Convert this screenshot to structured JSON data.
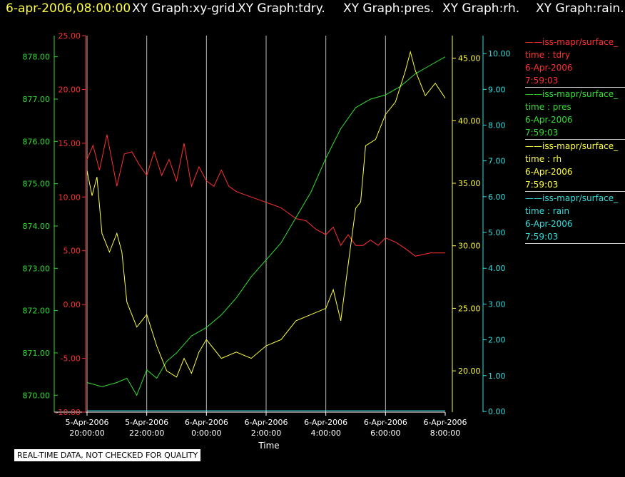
{
  "header": {
    "timestamp": "6-apr-2006,08:00:00",
    "titles": [
      "XY Graph:xy-grid.",
      "XY Graph:tdry.",
      "XY Graph:pres.",
      "XY Graph:rh.",
      "XY Graph:rain."
    ]
  },
  "notice": "REAL-TIME DATA, NOT CHECKED FOR QUALITY",
  "legend": [
    {
      "name": "iss-mapr/surface_",
      "var": "time : tdry",
      "date": "6-Apr-2006",
      "time": "7:59:03",
      "color": "#ff3030"
    },
    {
      "name": "iss-mapr/surface_",
      "var": "time : pres",
      "date": "6-Apr-2006",
      "time": "7:59:03",
      "color": "#33dd33"
    },
    {
      "name": "iss-mapr/surface_",
      "var": "time : rh",
      "date": "6-Apr-2006",
      "time": "7:59:03",
      "color": "#ffff40"
    },
    {
      "name": "iss-mapr/surface_",
      "var": "time : rain",
      "date": "6-Apr-2006",
      "time": "7:59:03",
      "color": "#33dddd"
    }
  ],
  "chart_data": {
    "type": "line",
    "xlabel": "Time",
    "x_ticks": [
      {
        "date": "5-Apr-2006",
        "time": "20:00:00"
      },
      {
        "date": "5-Apr-2006",
        "time": "22:00:00"
      },
      {
        "date": "6-Apr-2006",
        "time": "0:00:00"
      },
      {
        "date": "6-Apr-2006",
        "time": "2:00:00"
      },
      {
        "date": "6-Apr-2006",
        "time": "4:00:00"
      },
      {
        "date": "6-Apr-2006",
        "time": "6:00:00"
      },
      {
        "date": "6-Apr-2006",
        "time": "8:00:00"
      }
    ],
    "xlim": [
      "2006-04-05T20:00",
      "2006-04-06T08:00"
    ],
    "grid": true,
    "axes": {
      "tdry": {
        "range": [
          -10,
          25
        ],
        "ticks": [
          "-10.00",
          "-5.00",
          "0.00",
          "5.00",
          "10.00",
          "15.00",
          "20.00",
          "25.00"
        ],
        "color": "#ff3030"
      },
      "pres": {
        "range": [
          869.6,
          878.5
        ],
        "ticks": [
          "870.00",
          "871.00",
          "872.00",
          "873.00",
          "874.00",
          "875.00",
          "876.00",
          "877.00",
          "878.00"
        ],
        "color": "#33dd33"
      },
      "rh": {
        "range": [
          16.7,
          46.8
        ],
        "ticks": [
          "20.00",
          "25.00",
          "30.00",
          "35.00",
          "40.00",
          "45.00"
        ],
        "color": "#ffff40"
      },
      "rain": {
        "range": [
          -0.02,
          10.5
        ],
        "ticks": [
          "0.00",
          "1.00",
          "2.00",
          "3.00",
          "4.00",
          "5.00",
          "6.00",
          "7.00",
          "8.00",
          "9.00",
          "10.00"
        ],
        "color": "#33dddd"
      }
    },
    "series": [
      {
        "axis": "tdry",
        "color": "#ff3030",
        "x": [
          "2006-04-05T20:00",
          "2006-04-05T20:12",
          "2006-04-05T20:25",
          "2006-04-05T20:40",
          "2006-04-05T21:00",
          "2006-04-05T21:15",
          "2006-04-05T21:30",
          "2006-04-05T21:45",
          "2006-04-05T22:00",
          "2006-04-05T22:15",
          "2006-04-05T22:30",
          "2006-04-05T22:45",
          "2006-04-05T23:00",
          "2006-04-05T23:15",
          "2006-04-05T23:30",
          "2006-04-05T23:45",
          "2006-04-06T00:00",
          "2006-04-06T00:15",
          "2006-04-06T00:30",
          "2006-04-06T00:45",
          "2006-04-06T01:00",
          "2006-04-06T01:30",
          "2006-04-06T02:00",
          "2006-04-06T02:30",
          "2006-04-06T03:00",
          "2006-04-06T03:20",
          "2006-04-06T03:40",
          "2006-04-06T04:00",
          "2006-04-06T04:15",
          "2006-04-06T04:30",
          "2006-04-06T04:45",
          "2006-04-06T05:00",
          "2006-04-06T05:15",
          "2006-04-06T05:30",
          "2006-04-06T05:45",
          "2006-04-06T06:00",
          "2006-04-06T06:20",
          "2006-04-06T06:40",
          "2006-04-06T07:00",
          "2006-04-06T07:30",
          "2006-04-06T08:00"
        ],
        "y": [
          13.5,
          14.8,
          12.5,
          15.8,
          11.0,
          14.0,
          14.2,
          13.0,
          12.0,
          14.2,
          12.0,
          13.5,
          11.5,
          15.0,
          11.0,
          12.8,
          11.5,
          11.0,
          12.5,
          11.0,
          10.5,
          10.0,
          9.5,
          9.0,
          8.0,
          7.8,
          7.0,
          6.5,
          7.2,
          5.5,
          6.5,
          5.5,
          5.5,
          6.0,
          5.5,
          6.2,
          5.8,
          5.2,
          4.5,
          4.8,
          4.8
        ]
      },
      {
        "axis": "pres",
        "color": "#33dd33",
        "x": [
          "2006-04-05T20:00",
          "2006-04-05T20:30",
          "2006-04-05T21:00",
          "2006-04-05T21:20",
          "2006-04-05T21:40",
          "2006-04-05T22:00",
          "2006-04-05T22:20",
          "2006-04-05T22:40",
          "2006-04-05T23:00",
          "2006-04-05T23:30",
          "2006-04-06T00:00",
          "2006-04-06T00:30",
          "2006-04-06T01:00",
          "2006-04-06T01:30",
          "2006-04-06T02:00",
          "2006-04-06T02:30",
          "2006-04-06T03:00",
          "2006-04-06T03:30",
          "2006-04-06T04:00",
          "2006-04-06T04:30",
          "2006-04-06T05:00",
          "2006-04-06T05:30",
          "2006-04-06T06:00",
          "2006-04-06T06:30",
          "2006-04-06T07:00",
          "2006-04-06T07:30",
          "2006-04-06T08:00"
        ],
        "y": [
          870.3,
          870.2,
          870.3,
          870.4,
          870.0,
          870.6,
          870.4,
          870.8,
          871.0,
          871.4,
          871.6,
          871.9,
          872.3,
          872.8,
          873.2,
          873.6,
          874.2,
          874.8,
          875.6,
          876.3,
          876.8,
          877.0,
          877.1,
          877.3,
          877.6,
          877.8,
          878.0
        ]
      },
      {
        "axis": "rh",
        "color": "#ffff40",
        "x": [
          "2006-04-05T20:00",
          "2006-04-05T20:10",
          "2006-04-05T20:20",
          "2006-04-05T20:30",
          "2006-04-05T20:45",
          "2006-04-05T21:00",
          "2006-04-05T21:10",
          "2006-04-05T21:20",
          "2006-04-05T21:40",
          "2006-04-05T22:00",
          "2006-04-05T22:20",
          "2006-04-05T22:40",
          "2006-04-05T23:00",
          "2006-04-05T23:15",
          "2006-04-05T23:30",
          "2006-04-05T23:45",
          "2006-04-06T00:00",
          "2006-04-06T00:30",
          "2006-04-06T01:00",
          "2006-04-06T01:30",
          "2006-04-06T02:00",
          "2006-04-06T02:30",
          "2006-04-06T03:00",
          "2006-04-06T03:30",
          "2006-04-06T04:00",
          "2006-04-06T04:15",
          "2006-04-06T04:30",
          "2006-04-06T04:45",
          "2006-04-06T05:00",
          "2006-04-06T05:10",
          "2006-04-06T05:20",
          "2006-04-06T05:40",
          "2006-04-06T06:00",
          "2006-04-06T06:20",
          "2006-04-06T06:40",
          "2006-04-06T06:50",
          "2006-04-06T07:00",
          "2006-04-06T07:20",
          "2006-04-06T07:40",
          "2006-04-06T08:00"
        ],
        "y": [
          36.0,
          34.0,
          35.5,
          31.0,
          29.5,
          31.0,
          29.5,
          25.5,
          23.5,
          24.5,
          22.0,
          20.0,
          19.5,
          21.0,
          19.8,
          21.5,
          22.5,
          21.0,
          21.5,
          21.0,
          22.0,
          22.5,
          24.0,
          24.5,
          25.0,
          26.5,
          24.0,
          28.5,
          33.0,
          33.5,
          38.0,
          38.5,
          40.5,
          41.5,
          44.0,
          45.5,
          44.0,
          42.0,
          43.0,
          41.8
        ]
      },
      {
        "axis": "rain",
        "color": "#33dddd",
        "x": [
          "2006-04-05T20:00",
          "2006-04-06T08:00"
        ],
        "y": [
          0.02,
          0.02
        ]
      }
    ]
  }
}
